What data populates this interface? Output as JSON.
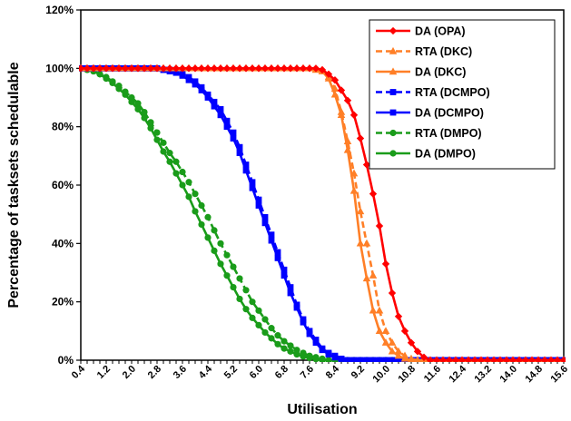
{
  "chart_data": {
    "type": "line",
    "title": "",
    "xlabel": "Utilisation",
    "ylabel": "Percentage of tasksets schedulable",
    "x": [
      0.4,
      0.6,
      0.8,
      1.0,
      1.2,
      1.4,
      1.6,
      1.8,
      2.0,
      2.2,
      2.4,
      2.6,
      2.8,
      3.0,
      3.2,
      3.4,
      3.6,
      3.8,
      4.0,
      4.2,
      4.4,
      4.6,
      4.8,
      5.0,
      5.2,
      5.4,
      5.6,
      5.8,
      6.0,
      6.2,
      6.4,
      6.6,
      6.8,
      7.0,
      7.2,
      7.4,
      7.6,
      7.8,
      8.0,
      8.2,
      8.4,
      8.6,
      8.8,
      9.0,
      9.2,
      9.4,
      9.6,
      9.8,
      10.0,
      10.2,
      10.4,
      10.6,
      10.8,
      11.0,
      11.2,
      11.4,
      11.6,
      11.8,
      12.0,
      12.2,
      12.4,
      12.6,
      12.8,
      13.0,
      13.2,
      13.4,
      13.6,
      13.8,
      14.0,
      14.2,
      14.4,
      14.6,
      14.8,
      15.0,
      15.2,
      15.4,
      15.6
    ],
    "x_ticks": [
      "0.4",
      "1.2",
      "2.0",
      "2.8",
      "3.6",
      "4.4",
      "5.2",
      "6.0",
      "6.8",
      "7.6",
      "8.4",
      "9.2",
      "10.0",
      "10.8",
      "11.6",
      "12.4",
      "13.2",
      "14.0",
      "14.8",
      "15.6"
    ],
    "y_ticks": [
      "0%",
      "20%",
      "40%",
      "60%",
      "80%",
      "100%",
      "120%"
    ],
    "xlim": [
      0.4,
      15.6
    ],
    "ylim": [
      0,
      120
    ],
    "grid": false,
    "legend_position": "top-right",
    "series": [
      {
        "name": "DA (OPA)",
        "color": "#ff0000",
        "dash": "solid",
        "marker": "diamond",
        "values": [
          100,
          100,
          100,
          100,
          100,
          100,
          100,
          100,
          100,
          100,
          100,
          100,
          100,
          100,
          100,
          100,
          100,
          100,
          100,
          100,
          100,
          100,
          100,
          100,
          100,
          100,
          100,
          100,
          100,
          100,
          100,
          100,
          100,
          100,
          100,
          100,
          100,
          100,
          99.5,
          98,
          96,
          92.5,
          89,
          84,
          76,
          67,
          57,
          46,
          33,
          23,
          15,
          10,
          6,
          3,
          1,
          0,
          0,
          0,
          0,
          0,
          0,
          0,
          0,
          0,
          0,
          0,
          0,
          0,
          0,
          0,
          0,
          0,
          0,
          0,
          0,
          0,
          0
        ]
      },
      {
        "name": "RTA (DKC)",
        "color": "#ff7f27",
        "dash": "dashed",
        "marker": "triangle",
        "values": [
          100,
          100,
          100,
          100,
          100,
          100,
          100,
          100,
          100,
          100,
          100,
          100,
          100,
          100,
          100,
          100,
          100,
          100,
          100,
          100,
          100,
          100,
          100,
          100,
          100,
          100,
          100,
          100,
          100,
          100,
          100,
          100,
          100,
          100,
          100,
          100,
          100,
          99.5,
          99,
          97,
          93,
          85,
          75,
          64,
          51,
          40,
          29,
          17,
          10,
          6,
          3,
          1.5,
          0.5,
          0,
          0,
          0,
          0,
          0,
          0,
          0,
          0,
          0,
          0,
          0,
          0,
          0,
          0,
          0,
          0,
          0,
          0,
          0,
          0,
          0,
          0,
          0,
          0
        ]
      },
      {
        "name": "DA (DKC)",
        "color": "#ff7f27",
        "dash": "solid",
        "marker": "triangle",
        "values": [
          100,
          100,
          100,
          100,
          100,
          100,
          100,
          100,
          100,
          100,
          100,
          100,
          100,
          100,
          100,
          100,
          100,
          100,
          100,
          100,
          100,
          100,
          100,
          100,
          100,
          100,
          100,
          100,
          100,
          100,
          100,
          100,
          100,
          100,
          100,
          100,
          100,
          99.5,
          99,
          96.5,
          91,
          84,
          72,
          58,
          40,
          28,
          17,
          10,
          6,
          3,
          1.5,
          0.5,
          0,
          0,
          0,
          0,
          0,
          0,
          0,
          0,
          0,
          0,
          0,
          0,
          0,
          0,
          0,
          0,
          0,
          0,
          0,
          0,
          0,
          0,
          0,
          0,
          0
        ]
      },
      {
        "name": "RTA (DCMPO)",
        "color": "#0000ff",
        "dash": "dashed",
        "marker": "square",
        "values": [
          100,
          100,
          100,
          100,
          100,
          100,
          100,
          100,
          100,
          100,
          100,
          100,
          100,
          99.5,
          99.5,
          99,
          98,
          97,
          95.5,
          93.5,
          91,
          88.5,
          86,
          82,
          78,
          73,
          67,
          61,
          55,
          49,
          43,
          37,
          31,
          25,
          19,
          14,
          10,
          7,
          4,
          2.5,
          1.5,
          0.5,
          0,
          0,
          0,
          0,
          0,
          0,
          0,
          0,
          0,
          0,
          0,
          0,
          0,
          0,
          0,
          0,
          0,
          0,
          0,
          0,
          0,
          0,
          0,
          0,
          0,
          0,
          0,
          0,
          0,
          0,
          0,
          0,
          0,
          0,
          0
        ]
      },
      {
        "name": "DA (DCMPO)",
        "color": "#0000ff",
        "dash": "solid",
        "marker": "square",
        "values": [
          100,
          100,
          100,
          100,
          100,
          100,
          100,
          100,
          100,
          100,
          100,
          100,
          100,
          99.5,
          99,
          98.5,
          97.5,
          96,
          94.5,
          92.5,
          90,
          87,
          84,
          80,
          76,
          71,
          65,
          59,
          53,
          47,
          41,
          35,
          29,
          23,
          18,
          13,
          9,
          6,
          3.5,
          2,
          1,
          0.5,
          0,
          0,
          0,
          0,
          0,
          0,
          0,
          0,
          0,
          0,
          0,
          0,
          0,
          0,
          0,
          0,
          0,
          0,
          0,
          0,
          0,
          0,
          0,
          0,
          0,
          0,
          0,
          0,
          0,
          0,
          0,
          0,
          0,
          0,
          0
        ]
      },
      {
        "name": "RTA (DMPO)",
        "color": "#1a9c1a",
        "dash": "dashed",
        "marker": "circle",
        "values": [
          100,
          99.5,
          99,
          98,
          97,
          95.5,
          94,
          92,
          90,
          88,
          85,
          81.5,
          78,
          74.5,
          71,
          68,
          64.5,
          61,
          57,
          53,
          49,
          44.5,
          40,
          36,
          32,
          28,
          24,
          20,
          17,
          14,
          11,
          8.5,
          6.5,
          5,
          3.5,
          2.5,
          1.5,
          1,
          0.5,
          0,
          0,
          0,
          0,
          0,
          0,
          0,
          0,
          0,
          0,
          0,
          0,
          0,
          0,
          0,
          0,
          0,
          0,
          0,
          0,
          0,
          0,
          0,
          0,
          0,
          0,
          0,
          0,
          0,
          0,
          0,
          0,
          0,
          0,
          0,
          0,
          0,
          0
        ]
      },
      {
        "name": "DA (DMPO)",
        "color": "#1a9c1a",
        "dash": "solid",
        "marker": "circle",
        "values": [
          100,
          99.5,
          99,
          98,
          96.5,
          95,
          93,
          91,
          88.5,
          86,
          83,
          79.5,
          75.5,
          71.5,
          68,
          64,
          60,
          56,
          51,
          46.5,
          42,
          37.5,
          33,
          29,
          25,
          21,
          17.5,
          14.5,
          12,
          9.5,
          7.5,
          5.5,
          4,
          3,
          2,
          1.3,
          0.8,
          0.4,
          0,
          0,
          0,
          0,
          0,
          0,
          0,
          0,
          0,
          0,
          0,
          0,
          0,
          0,
          0,
          0,
          0,
          0,
          0,
          0,
          0,
          0,
          0,
          0,
          0,
          0,
          0,
          0,
          0,
          0,
          0,
          0,
          0,
          0,
          0,
          0,
          0,
          0,
          0
        ]
      }
    ]
  }
}
